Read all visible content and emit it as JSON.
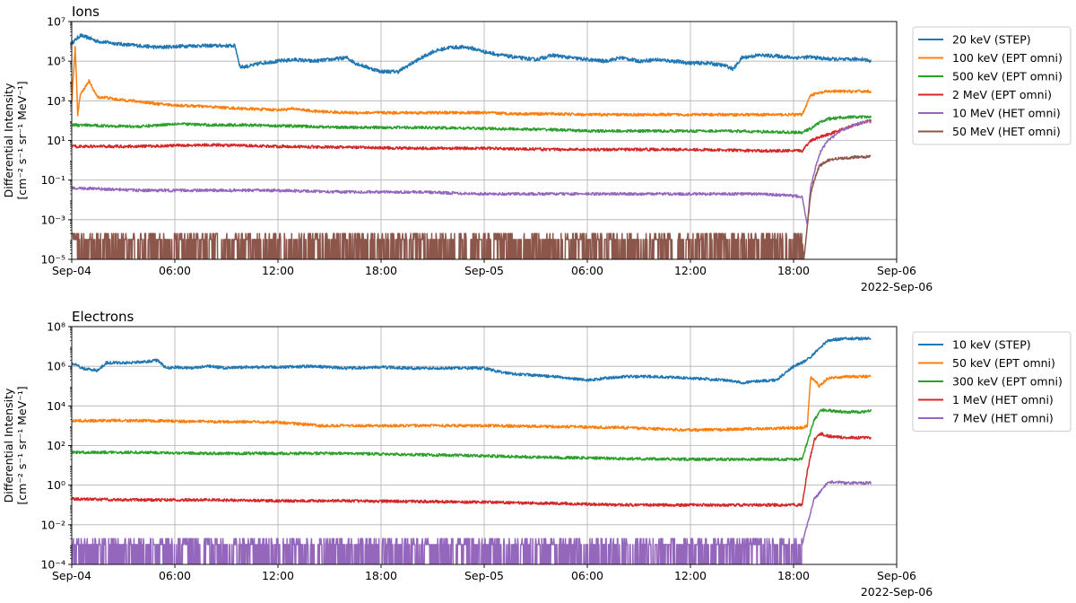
{
  "figure": {
    "xlabel_date": "2022-Sep-06",
    "x_tick_labels": [
      "Sep-04",
      "06:00",
      "12:00",
      "18:00",
      "Sep-05",
      "06:00",
      "12:00",
      "18:00",
      "Sep-06"
    ]
  },
  "chart_data": [
    {
      "type": "line",
      "title": "Ions",
      "ylabel_line1": "Differential Intensity",
      "ylabel_line2": "[cm⁻² s⁻¹ sr⁻¹ MeV⁻¹]",
      "yscale": "log",
      "ylim": [
        1e-05,
        10000000.0
      ],
      "y_tick_labels": [
        "10⁻⁵",
        "10⁻³",
        "10⁻¹",
        "10¹",
        "10³",
        "10⁵",
        "10⁷"
      ],
      "x_unit": "hours since 2022-09-04 00:00",
      "xlim": [
        0,
        48
      ],
      "grid": true,
      "legend_position": "outside-right",
      "series": [
        {
          "name": "20 keV (STEP)",
          "color": "#1f77b4",
          "x": [
            0,
            0.5,
            1,
            1.5,
            2,
            3,
            4,
            5,
            6,
            7,
            8,
            9.5,
            9.8,
            10.5,
            11,
            12,
            13,
            14,
            15,
            16,
            16.5,
            17.5,
            18,
            19,
            20,
            21,
            22,
            23,
            23.5,
            24,
            25,
            26,
            27,
            28,
            29,
            30,
            31,
            32,
            33,
            34,
            35,
            36,
            37,
            38,
            38.5,
            39,
            40,
            41,
            42,
            43,
            44,
            45,
            46,
            46.5
          ],
          "y": [
            800000.0,
            2000000.0,
            1500000.0,
            1000000.0,
            900000.0,
            700000.0,
            600000.0,
            500000.0,
            550000.0,
            600000.0,
            600000.0,
            600000.0,
            50000.0,
            60000.0,
            80000.0,
            100000.0,
            120000.0,
            100000.0,
            120000.0,
            150000.0,
            80000.0,
            40000.0,
            30000.0,
            30000.0,
            100000.0,
            300000.0,
            500000.0,
            500000.0,
            400000.0,
            300000.0,
            200000.0,
            150000.0,
            120000.0,
            200000.0,
            150000.0,
            120000.0,
            100000.0,
            150000.0,
            100000.0,
            120000.0,
            100000.0,
            80000.0,
            80000.0,
            60000.0,
            40000.0,
            150000.0,
            200000.0,
            180000.0,
            150000.0,
            160000.0,
            130000.0,
            120000.0,
            130000.0,
            100000.0
          ]
        },
        {
          "name": "100 keV (EPT omni)",
          "color": "#ff7f0e",
          "x": [
            0,
            0.2,
            0.35,
            0.5,
            1,
            1.5,
            2,
            2.5,
            3,
            4,
            5,
            6,
            8,
            10,
            12,
            13,
            14,
            16,
            18,
            20,
            24,
            26,
            28,
            30,
            32,
            34,
            36,
            38,
            41,
            42.5,
            43,
            44,
            45,
            46,
            46.5
          ],
          "y": [
            1000,
            500000.0,
            200,
            2000,
            10000,
            1500,
            1500,
            1200,
            1100,
            900,
            700,
            600,
            500,
            400,
            350,
            400,
            300,
            250,
            250,
            250,
            250,
            220,
            220,
            200,
            200,
            200,
            200,
            200,
            200,
            200,
            2000,
            3000,
            3000,
            3000,
            3000
          ]
        },
        {
          "name": "500 keV (EPT omni)",
          "color": "#2ca02c",
          "x": [
            0,
            2,
            4,
            6,
            8,
            10,
            12,
            14,
            16,
            20,
            24,
            28,
            30,
            34,
            38,
            42.5,
            43,
            43.5,
            44,
            45,
            46,
            46.5
          ],
          "y": [
            60,
            55,
            50,
            70,
            60,
            60,
            55,
            50,
            45,
            45,
            40,
            35,
            30,
            30,
            30,
            25,
            40,
            80,
            120,
            150,
            150,
            150
          ]
        },
        {
          "name": "2 MeV (EPT omni)",
          "color": "#d62728",
          "x": [
            0,
            4,
            8,
            12,
            16,
            20,
            24,
            28,
            32,
            36,
            40,
            42.5,
            43,
            43.5,
            44,
            45,
            46,
            46.5
          ],
          "y": [
            5,
            5,
            6,
            5,
            4.5,
            4,
            4,
            3.5,
            3.5,
            3.5,
            3,
            3,
            10,
            15,
            20,
            40,
            80,
            100
          ]
        },
        {
          "name": "10 MeV (HET omni)",
          "color": "#9467bd",
          "x": [
            0,
            4,
            8,
            12,
            16,
            20,
            24,
            28,
            32,
            36,
            40,
            42.5,
            42.8,
            43,
            43.3,
            43.6,
            44,
            44.5,
            45,
            45.5,
            46,
            46.5
          ],
          "y": [
            0.04,
            0.03,
            0.03,
            0.03,
            0.025,
            0.025,
            0.02,
            0.02,
            0.02,
            0.02,
            0.02,
            0.015,
            0.0005,
            0.05,
            0.5,
            3,
            10,
            20,
            40,
            60,
            80,
            90
          ]
        },
        {
          "name": "50 MeV (HET omni)",
          "color": "#8c564b",
          "x": [
            0,
            42.5,
            42.6,
            42.8,
            43,
            43.2,
            43.5,
            44,
            44.5,
            45,
            45.5,
            46,
            46.5
          ],
          "y": [
            0.0001,
            0.0001,
            1e-05,
            0.0005,
            0.02,
            0.1,
            0.5,
            1,
            1.2,
            1.3,
            1.4,
            1.5,
            1.5
          ],
          "noise_floor_until": 42.5
        }
      ]
    },
    {
      "type": "line",
      "title": "Electrons",
      "ylabel_line1": "Differential Intensity",
      "ylabel_line2": "[cm⁻² s⁻¹ sr⁻¹ MeV⁻¹]",
      "yscale": "log",
      "ylim": [
        0.0001,
        100000000.0
      ],
      "y_tick_labels": [
        "10⁻⁴",
        "10⁻²",
        "10⁰",
        "10²",
        "10⁴",
        "10⁶",
        "10⁸"
      ],
      "x_unit": "hours since 2022-09-04 00:00",
      "xlim": [
        0,
        48
      ],
      "grid": true,
      "legend_position": "outside-right",
      "series": [
        {
          "name": "10 keV (STEP)",
          "color": "#1f77b4",
          "x": [
            0,
            0.6,
            1.5,
            2,
            2.6,
            3,
            4,
            5,
            5.5,
            6,
            7,
            8,
            9,
            10,
            12,
            14,
            16,
            18,
            20,
            22,
            24,
            25,
            26,
            28,
            30,
            32,
            34,
            36,
            38,
            39,
            40,
            41,
            42,
            42.5,
            43,
            43.5,
            44,
            45,
            46,
            46.5
          ],
          "y": [
            1500000.0,
            800000.0,
            600000.0,
            1500000.0,
            1500000.0,
            1500000.0,
            1600000.0,
            2000000.0,
            800000.0,
            900000.0,
            800000.0,
            1000000.0,
            800000.0,
            900000.0,
            900000.0,
            1000000.0,
            800000.0,
            900000.0,
            800000.0,
            800000.0,
            800000.0,
            500000.0,
            400000.0,
            300000.0,
            200000.0,
            300000.0,
            300000.0,
            250000.0,
            200000.0,
            150000.0,
            180000.0,
            200000.0,
            1000000.0,
            1500000.0,
            3000000.0,
            8000000.0,
            20000000.0,
            25000000.0,
            25000000.0,
            25000000.0
          ]
        },
        {
          "name": "50 keV (EPT omni)",
          "color": "#ff7f0e",
          "x": [
            0,
            4,
            8,
            12,
            14.5,
            16,
            20,
            24,
            28,
            32,
            36,
            40,
            42.5,
            42.8,
            43,
            43.5,
            44,
            45,
            46,
            46.5
          ],
          "y": [
            1800,
            1800,
            1600,
            1500,
            1000,
            1000,
            1000,
            1000,
            900,
            800,
            600,
            700,
            800,
            1000,
            300000.0,
            100000.0,
            250000.0,
            300000.0,
            300000.0,
            300000.0
          ]
        },
        {
          "name": "300 keV (EPT omni)",
          "color": "#2ca02c",
          "x": [
            0,
            4,
            8,
            12,
            16,
            20,
            24,
            28,
            32,
            36,
            40,
            42.5,
            42.8,
            43.2,
            43.6,
            44,
            45,
            46,
            46.5
          ],
          "y": [
            45,
            45,
            40,
            40,
            40,
            35,
            30,
            25,
            22,
            20,
            20,
            20,
            150,
            2000,
            6000,
            6000,
            5000,
            5000,
            6000
          ]
        },
        {
          "name": "1 MeV (HET omni)",
          "color": "#d62728",
          "x": [
            0,
            4,
            8,
            12,
            16,
            20,
            24,
            28,
            32,
            36,
            40,
            42.5,
            42.8,
            43.2,
            43.6,
            44,
            45,
            46,
            46.5
          ],
          "y": [
            0.2,
            0.18,
            0.18,
            0.16,
            0.16,
            0.15,
            0.14,
            0.12,
            0.1,
            0.1,
            0.1,
            0.1,
            5,
            200,
            400,
            300,
            250,
            250,
            250
          ]
        },
        {
          "name": "7 MeV (HET omni)",
          "color": "#9467bd",
          "x": [
            0,
            42.5,
            42.8,
            43.2,
            43.6,
            44,
            45,
            46,
            46.5
          ],
          "y": [
            0.001,
            0.001,
            0.01,
            0.2,
            0.5,
            1.5,
            1.3,
            1.3,
            1.3
          ],
          "noise_floor_until": 42.5
        }
      ]
    }
  ]
}
